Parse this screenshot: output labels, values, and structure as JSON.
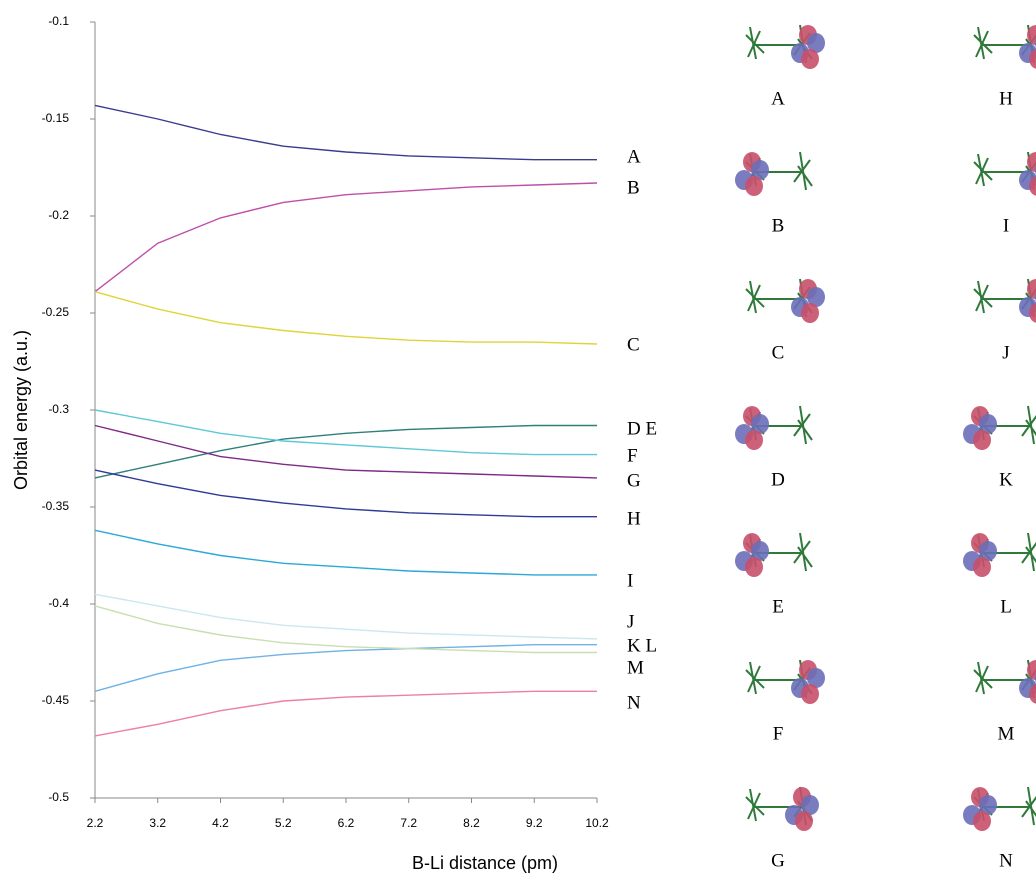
{
  "chart_data": {
    "type": "line",
    "y_label": "Orbital energy (a.u.)",
    "x_label": "B-Li distance (pm)",
    "x": [
      2.2,
      3.2,
      4.2,
      5.2,
      6.2,
      7.2,
      8.2,
      9.2,
      10.2
    ],
    "xlim": [
      2.2,
      10.2
    ],
    "xticks": [
      2.2,
      3.2,
      4.2,
      5.2,
      6.2,
      7.2,
      8.2,
      9.2,
      10.2
    ],
    "ylim": [
      -0.5,
      -0.1
    ],
    "yticks": [
      -0.5,
      -0.45,
      -0.4,
      -0.35,
      -0.3,
      -0.25,
      -0.2,
      -0.15,
      -0.1
    ],
    "grid": false,
    "series": [
      {
        "name": "A",
        "color": "#3b3b8f",
        "values": [
          -0.143,
          -0.15,
          -0.158,
          -0.164,
          -0.167,
          -0.169,
          -0.17,
          -0.171,
          -0.171
        ]
      },
      {
        "name": "B",
        "color": "#c04fa8",
        "values": [
          -0.239,
          -0.214,
          -0.201,
          -0.193,
          -0.189,
          -0.187,
          -0.185,
          -0.184,
          -0.183
        ]
      },
      {
        "name": "C",
        "color": "#e0d43a",
        "values": [
          -0.239,
          -0.248,
          -0.255,
          -0.259,
          -0.262,
          -0.264,
          -0.265,
          -0.265,
          -0.266
        ]
      },
      {
        "name": "D E",
        "color": "#2f7f7a",
        "values": [
          -0.335,
          -0.328,
          -0.321,
          -0.315,
          -0.312,
          -0.31,
          -0.309,
          -0.308,
          -0.308
        ]
      },
      {
        "name": "F",
        "color": "#5cc8d8",
        "values": [
          -0.3,
          -0.306,
          -0.312,
          -0.316,
          -0.318,
          -0.32,
          -0.322,
          -0.323,
          -0.323
        ]
      },
      {
        "name": "G",
        "color": "#7e2a86",
        "values": [
          -0.308,
          -0.316,
          -0.324,
          -0.328,
          -0.331,
          -0.332,
          -0.333,
          -0.334,
          -0.335
        ]
      },
      {
        "name": "H",
        "color": "#2e3a96",
        "values": [
          -0.331,
          -0.338,
          -0.344,
          -0.348,
          -0.351,
          -0.353,
          -0.354,
          -0.355,
          -0.355
        ]
      },
      {
        "name": "I",
        "color": "#2aa8d8",
        "values": [
          -0.362,
          -0.369,
          -0.375,
          -0.379,
          -0.381,
          -0.383,
          -0.384,
          -0.385,
          -0.385
        ]
      },
      {
        "name": "J",
        "color": "#cde6f2",
        "values": [
          -0.395,
          -0.401,
          -0.407,
          -0.411,
          -0.413,
          -0.415,
          -0.416,
          -0.417,
          -0.418
        ]
      },
      {
        "name": "K L",
        "color": "#6fb2e6",
        "values": [
          -0.445,
          -0.436,
          -0.429,
          -0.426,
          -0.424,
          -0.423,
          -0.422,
          -0.421,
          -0.421
        ]
      },
      {
        "name": "M",
        "color": "#c8dfb0",
        "values": [
          -0.401,
          -0.41,
          -0.416,
          -0.42,
          -0.422,
          -0.423,
          -0.424,
          -0.425,
          -0.425
        ]
      },
      {
        "name": "N",
        "color": "#ee7fa0",
        "values": [
          -0.468,
          -0.462,
          -0.455,
          -0.45,
          -0.448,
          -0.447,
          -0.446,
          -0.445,
          -0.445
        ]
      }
    ]
  },
  "orbitals": [
    {
      "label": "A"
    },
    {
      "label": "B"
    },
    {
      "label": "C"
    },
    {
      "label": "D"
    },
    {
      "label": "E"
    },
    {
      "label": "F"
    },
    {
      "label": "G"
    },
    {
      "label": "H"
    },
    {
      "label": "I"
    },
    {
      "label": "J"
    },
    {
      "label": "K"
    },
    {
      "label": "L"
    },
    {
      "label": "M"
    },
    {
      "label": "N"
    }
  ]
}
